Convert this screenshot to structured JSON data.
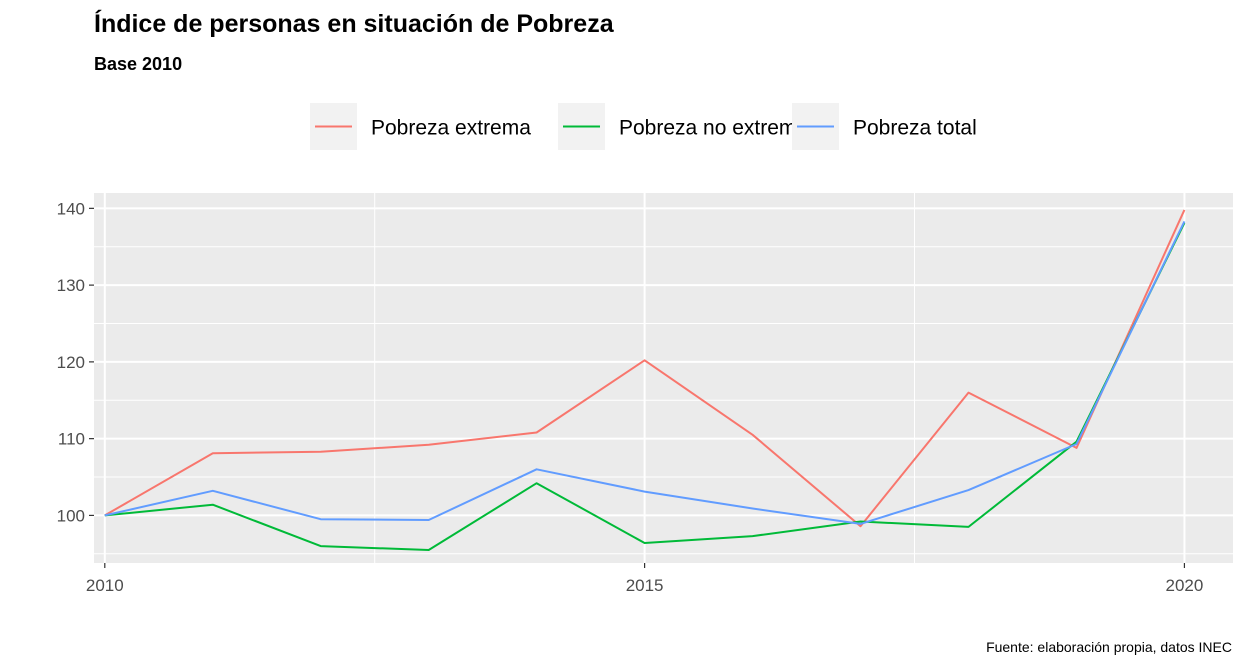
{
  "chart_data": {
    "type": "line",
    "title": "Índice de personas en situación de Pobreza",
    "subtitle": "Base 2010",
    "caption": "Fuente: elaboración propia, datos INEC",
    "xlabel": "",
    "ylabel": "",
    "xlim": [
      2009.9,
      2020.45
    ],
    "ylim": [
      93.8,
      142
    ],
    "x_ticks": [
      2010,
      2015,
      2020
    ],
    "y_ticks": [
      100,
      110,
      120,
      130,
      140
    ],
    "grid": true,
    "legend_position": "top",
    "x": [
      2010,
      2011,
      2012,
      2013,
      2014,
      2015,
      2016,
      2017,
      2018,
      2019,
      2020
    ],
    "series": [
      {
        "name": "Pobreza extrema",
        "color": "#f8766d",
        "values": [
          100,
          108.1,
          108.3,
          109.2,
          110.8,
          120.2,
          110.5,
          98.6,
          116.0,
          108.8,
          139.8
        ]
      },
      {
        "name": "Pobreza no extrema",
        "color": "#00ba38",
        "values": [
          100,
          101.4,
          96.0,
          95.5,
          104.2,
          96.4,
          97.3,
          99.2,
          98.5,
          109.6,
          138.1
        ]
      },
      {
        "name": "Pobreza total",
        "color": "#619cff",
        "values": [
          100,
          103.2,
          99.5,
          99.4,
          106.0,
          103.1,
          100.9,
          98.9,
          103.3,
          109.3,
          138.3
        ]
      }
    ]
  }
}
